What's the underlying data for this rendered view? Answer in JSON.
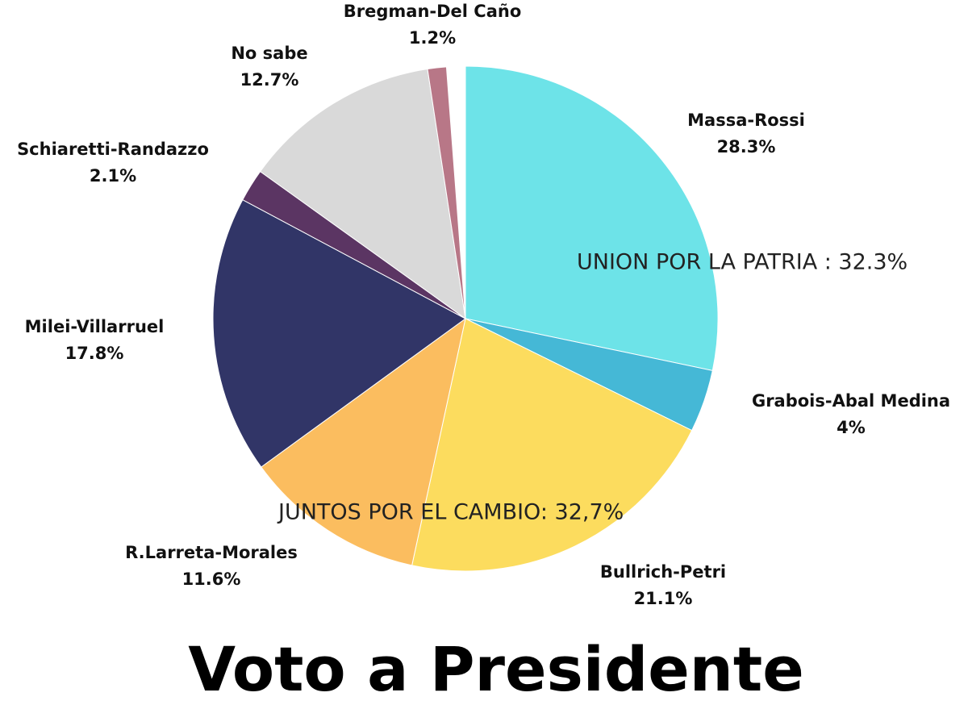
{
  "chart_data": {
    "type": "pie",
    "title": "Voto a Presidente",
    "categories": [
      "Massa-Rossi",
      "Grabois-Abal Medina",
      "Bullrich-Petri",
      "R.Larreta-Morales",
      "Milei-Villarruel",
      "Schiaretti-Randazzo",
      "No sabe",
      "Bregman-Del Caño"
    ],
    "values": [
      28.3,
      4,
      21.1,
      11.6,
      17.8,
      2.1,
      12.7,
      1.2
    ],
    "value_labels": [
      "28.3%",
      "4%",
      "21.1%",
      "11.6%",
      "17.8%",
      "2.1%",
      "12.7%",
      "1.2%"
    ],
    "colors": [
      "#6de3e8",
      "#45b8d6",
      "#fcdc5e",
      "#fbbd5f",
      "#313567",
      "#5b3563",
      "#d9d9d9",
      "#b87787"
    ],
    "annotations": [
      "UNION POR LA PATRIA : 32.3%",
      "JUNTOS POR EL CAMBIO: 32,7%"
    ]
  }
}
